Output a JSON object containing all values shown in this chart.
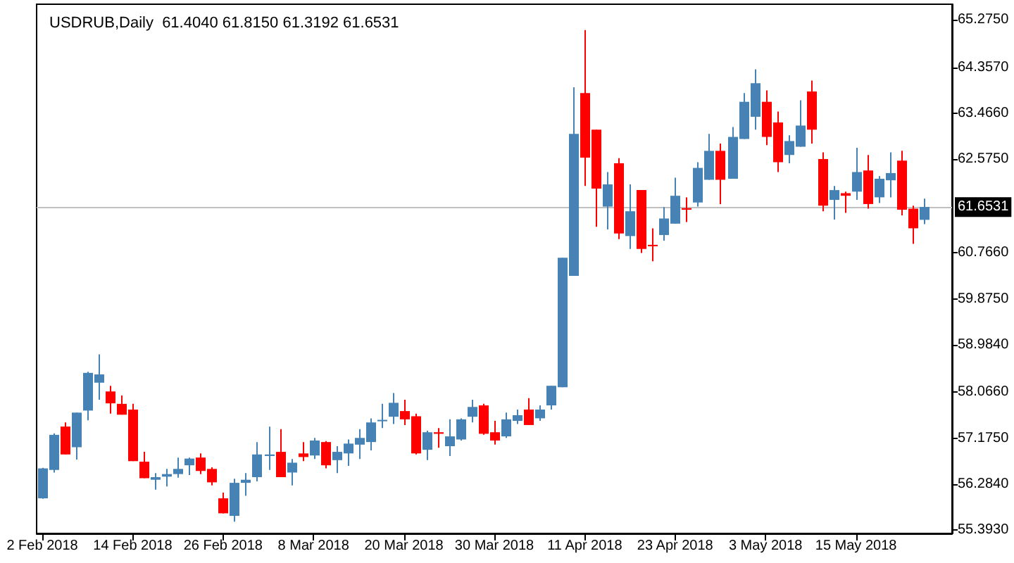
{
  "chart_data": {
    "type": "candlestick",
    "title": "USDRUB,Daily  61.4040 61.8150 61.3192 61.6531",
    "categories": [
      "2 Feb 2018",
      null,
      null,
      null,
      null,
      null,
      null,
      null,
      "14 Feb 2018",
      null,
      null,
      null,
      null,
      null,
      null,
      null,
      "26 Feb 2018",
      null,
      null,
      null,
      null,
      null,
      null,
      null,
      "8 Mar 2018",
      null,
      null,
      null,
      null,
      null,
      null,
      null,
      "20 Mar 2018",
      null,
      null,
      null,
      null,
      null,
      null,
      null,
      "30 Mar 2018",
      null,
      null,
      null,
      null,
      null,
      null,
      null,
      "11 Apr 2018",
      null,
      null,
      null,
      null,
      null,
      null,
      null,
      "23 Apr 2018",
      null,
      null,
      null,
      null,
      null,
      null,
      null,
      "3 May 2018",
      null,
      null,
      null,
      null,
      null,
      null,
      null,
      "15 May 2018",
      null,
      null,
      null,
      null,
      null,
      null
    ],
    "ohlc": [
      [
        56.01,
        56.6,
        56.0,
        56.59
      ],
      [
        56.56,
        57.27,
        56.51,
        57.24
      ],
      [
        57.4,
        57.48,
        56.86,
        56.86
      ],
      [
        57.0,
        57.67,
        56.76,
        57.67
      ],
      [
        57.71,
        58.46,
        57.52,
        58.44
      ],
      [
        58.25,
        58.8,
        57.92,
        58.41
      ],
      [
        58.08,
        58.19,
        57.65,
        57.85
      ],
      [
        57.84,
        58.0,
        57.63,
        57.63
      ],
      [
        57.73,
        57.84,
        56.73,
        56.73
      ],
      [
        56.72,
        56.91,
        56.4,
        56.4
      ],
      [
        56.37,
        56.5,
        56.18,
        56.42
      ],
      [
        56.43,
        56.58,
        56.24,
        56.48
      ],
      [
        56.48,
        56.8,
        56.41,
        56.58
      ],
      [
        56.65,
        56.8,
        56.46,
        56.78
      ],
      [
        56.8,
        56.88,
        56.48,
        56.54
      ],
      [
        56.58,
        56.61,
        56.26,
        56.32
      ],
      [
        56.01,
        56.12,
        55.72,
        55.72
      ],
      [
        55.67,
        56.39,
        55.56,
        56.31
      ],
      [
        56.31,
        56.5,
        56.06,
        56.37
      ],
      [
        56.42,
        57.1,
        56.34,
        56.86
      ],
      [
        56.83,
        57.4,
        56.56,
        56.86
      ],
      [
        56.91,
        57.35,
        56.42,
        56.42
      ],
      [
        56.51,
        56.77,
        56.26,
        56.7
      ],
      [
        56.88,
        57.1,
        56.73,
        56.81
      ],
      [
        56.84,
        57.18,
        56.77,
        57.13
      ],
      [
        57.1,
        57.12,
        56.59,
        56.65
      ],
      [
        56.75,
        57.02,
        56.5,
        56.91
      ],
      [
        56.88,
        57.15,
        56.64,
        57.07
      ],
      [
        57.05,
        57.35,
        56.77,
        57.18
      ],
      [
        57.1,
        57.56,
        56.94,
        57.48
      ],
      [
        57.51,
        57.84,
        57.37,
        57.53
      ],
      [
        57.59,
        58.05,
        57.45,
        57.86
      ],
      [
        57.7,
        57.92,
        57.43,
        57.54
      ],
      [
        57.6,
        57.65,
        56.86,
        56.88
      ],
      [
        56.95,
        57.32,
        56.75,
        57.29
      ],
      [
        57.29,
        57.37,
        56.99,
        57.26
      ],
      [
        57.02,
        57.54,
        56.83,
        57.21
      ],
      [
        57.15,
        57.56,
        57.13,
        57.54
      ],
      [
        57.59,
        57.92,
        57.48,
        57.78
      ],
      [
        57.81,
        57.84,
        57.24,
        57.26
      ],
      [
        57.29,
        57.51,
        57.05,
        57.13
      ],
      [
        57.21,
        57.67,
        57.18,
        57.54
      ],
      [
        57.51,
        57.73,
        57.45,
        57.62
      ],
      [
        57.73,
        57.95,
        57.43,
        57.43
      ],
      [
        57.56,
        57.81,
        57.51,
        57.73
      ],
      [
        57.81,
        58.19,
        57.73,
        58.19
      ],
      [
        58.16,
        60.67,
        58.16,
        60.67
      ],
      [
        60.32,
        63.97,
        60.32,
        63.07
      ],
      [
        63.86,
        65.08,
        62.06,
        62.61
      ],
      [
        63.15,
        63.15,
        61.27,
        62.01
      ],
      [
        61.66,
        62.33,
        61.22,
        62.09
      ],
      [
        62.5,
        62.6,
        61.03,
        61.14
      ],
      [
        61.09,
        62.09,
        60.84,
        61.57
      ],
      [
        61.98,
        61.98,
        60.76,
        60.84
      ],
      [
        60.92,
        61.24,
        60.6,
        60.9
      ],
      [
        61.11,
        61.65,
        61.0,
        61.43
      ],
      [
        61.33,
        62.22,
        61.33,
        61.87
      ],
      [
        61.63,
        61.84,
        61.36,
        61.6
      ],
      [
        61.74,
        62.52,
        61.66,
        62.41
      ],
      [
        62.18,
        63.07,
        62.18,
        62.74
      ],
      [
        62.74,
        62.88,
        61.71,
        62.18
      ],
      [
        62.2,
        63.2,
        62.2,
        63.01
      ],
      [
        62.97,
        63.86,
        62.97,
        63.69
      ],
      [
        63.4,
        64.32,
        63.15,
        64.05
      ],
      [
        63.69,
        63.91,
        62.85,
        63.01
      ],
      [
        63.29,
        63.5,
        62.33,
        62.52
      ],
      [
        62.66,
        63.04,
        62.5,
        62.93
      ],
      [
        62.82,
        63.72,
        62.82,
        63.23
      ],
      [
        63.89,
        64.1,
        62.88,
        63.15
      ],
      [
        62.58,
        62.71,
        61.57,
        61.68
      ],
      [
        61.79,
        62.06,
        61.41,
        61.98
      ],
      [
        61.92,
        61.95,
        61.54,
        61.87
      ],
      [
        61.95,
        62.8,
        61.79,
        62.33
      ],
      [
        62.36,
        62.66,
        61.62,
        61.71
      ],
      [
        61.84,
        62.25,
        61.73,
        62.2
      ],
      [
        62.17,
        62.71,
        61.84,
        62.31
      ],
      [
        62.55,
        62.74,
        61.49,
        61.6
      ],
      [
        61.62,
        61.68,
        60.94,
        61.24
      ],
      [
        61.404,
        61.815,
        61.3192,
        61.6531
      ]
    ],
    "colors": [
      "#4682b4",
      "#4682b4",
      "#ff0000",
      "#4682b4",
      "#4682b4",
      "#4682b4",
      "#ff0000",
      "#ff0000",
      "#ff0000",
      "#ff0000",
      "#4682b4",
      "#4682b4",
      "#4682b4",
      "#4682b4",
      "#ff0000",
      "#ff0000",
      "#ff0000",
      "#4682b4",
      "#4682b4",
      "#4682b4",
      "#4682b4",
      "#ff0000",
      "#4682b4",
      "#ff0000",
      "#4682b4",
      "#ff0000",
      "#4682b4",
      "#4682b4",
      "#4682b4",
      "#4682b4",
      "#4682b4",
      "#4682b4",
      "#ff0000",
      "#ff0000",
      "#4682b4",
      "#ff0000",
      "#4682b4",
      "#4682b4",
      "#4682b4",
      "#ff0000",
      "#ff0000",
      "#4682b4",
      "#4682b4",
      "#ff0000",
      "#4682b4",
      "#4682b4",
      "#4682b4",
      "#4682b4",
      "#ff0000",
      "#ff0000",
      "#4682b4",
      "#ff0000",
      "#4682b4",
      "#ff0000",
      "#ff0000",
      "#4682b4",
      "#4682b4",
      "#ff0000",
      "#4682b4",
      "#4682b4",
      "#ff0000",
      "#4682b4",
      "#4682b4",
      "#4682b4",
      "#ff0000",
      "#ff0000",
      "#4682b4",
      "#4682b4",
      "#ff0000",
      "#ff0000",
      "#4682b4",
      "#ff0000",
      "#4682b4",
      "#ff0000",
      "#4682b4",
      "#4682b4",
      "#ff0000",
      "#ff0000",
      "#4682b4"
    ],
    "ylim": [
      55.33,
      65.58
    ],
    "yticks": [
      {
        "value": 55.393,
        "label": "55.3930"
      },
      {
        "value": 56.284,
        "label": "56.2840"
      },
      {
        "value": 57.175,
        "label": "57.1750"
      },
      {
        "value": 58.066,
        "label": "58.0660"
      },
      {
        "value": 58.984,
        "label": "58.9840"
      },
      {
        "value": 59.875,
        "label": "59.8750"
      },
      {
        "value": 60.766,
        "label": "60.7660"
      },
      {
        "value": 62.575,
        "label": "62.5750"
      },
      {
        "value": 63.466,
        "label": "63.4660"
      },
      {
        "value": 64.357,
        "label": "64.3570"
      },
      {
        "value": 65.275,
        "label": "65.2750"
      }
    ],
    "ref_lines": [
      {
        "axis": "y",
        "value": 61.6531,
        "label": "61.6531",
        "color": "#c0c0c0"
      }
    ]
  }
}
